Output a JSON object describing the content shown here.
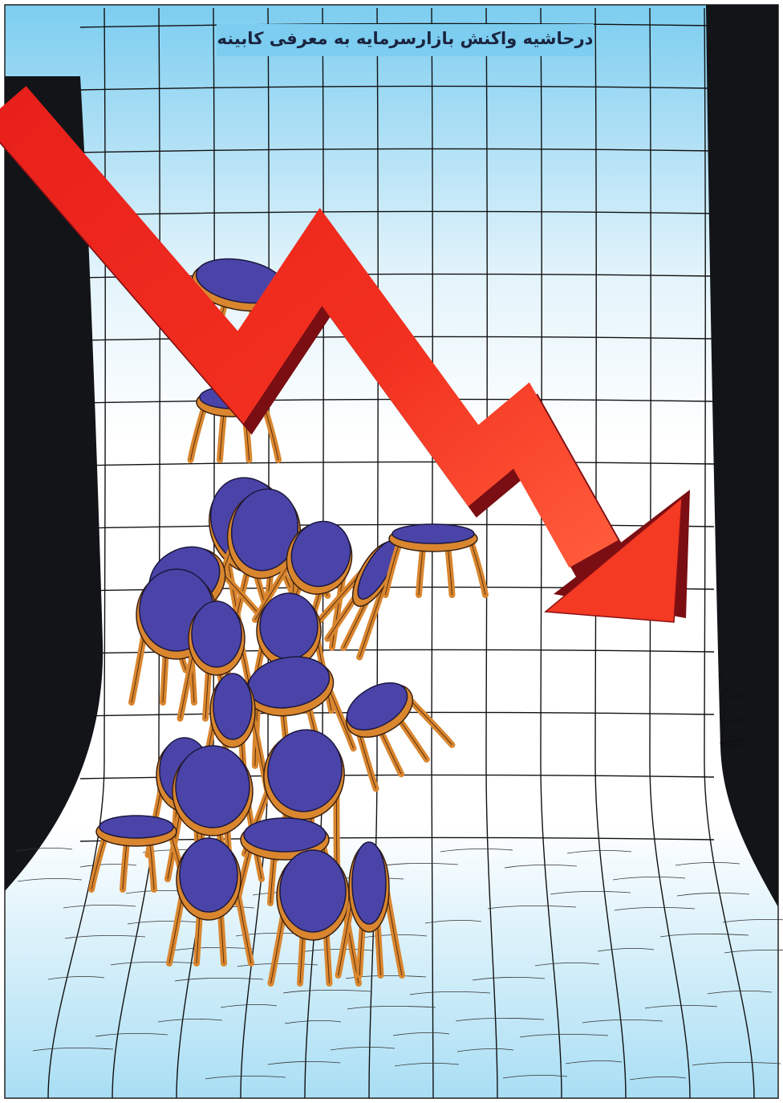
{
  "header": {
    "title": "درحاشیه واکنش بازارسرمایه به معرفی کابینه"
  }
}
